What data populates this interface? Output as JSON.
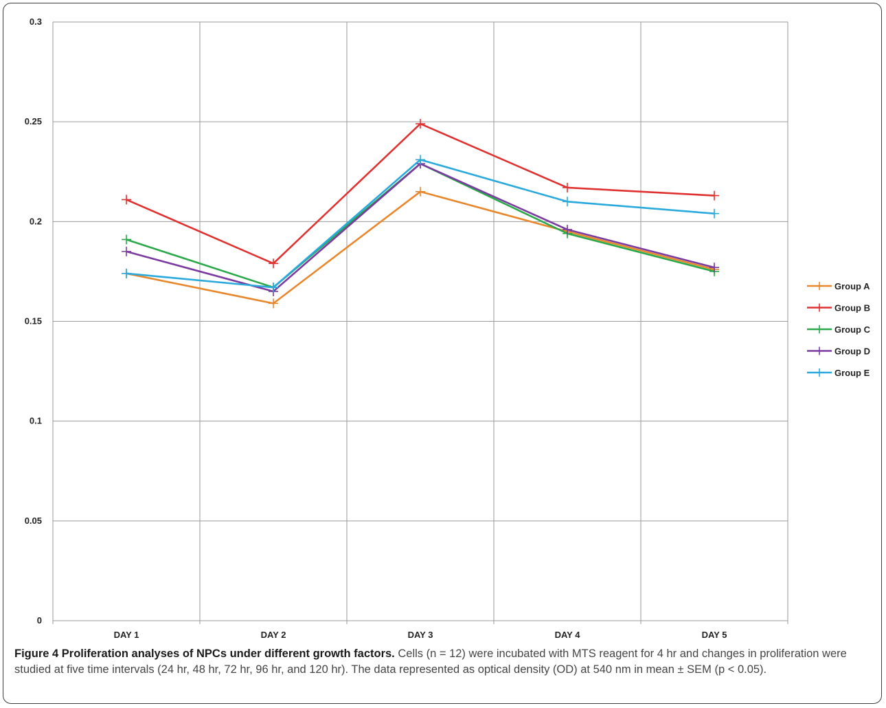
{
  "chart_data": {
    "type": "line",
    "categories": [
      "DAY 1",
      "DAY 2",
      "DAY 3",
      "DAY 4",
      "DAY 5"
    ],
    "ylim": [
      0,
      0.3
    ],
    "yticks": [
      "0",
      "0.05",
      "0.1",
      "0.15",
      "0.2",
      "0.25",
      "0.3"
    ],
    "grid": true,
    "legend_position": "right",
    "series": [
      {
        "name": "Group A",
        "color": "#e8872c",
        "values": [
          0.174,
          0.159,
          0.215,
          0.195,
          0.176
        ]
      },
      {
        "name": "Group B",
        "color": "#e03131",
        "values": [
          0.211,
          0.179,
          0.249,
          0.217,
          0.213
        ]
      },
      {
        "name": "Group C",
        "color": "#2aa84a",
        "values": [
          0.191,
          0.167,
          0.229,
          0.194,
          0.175
        ]
      },
      {
        "name": "Group D",
        "color": "#7b3aa0",
        "values": [
          0.185,
          0.165,
          0.229,
          0.196,
          0.177
        ]
      },
      {
        "name": "Group E",
        "color": "#29a9dc",
        "values": [
          0.174,
          0.167,
          0.231,
          0.21,
          0.204
        ]
      }
    ]
  },
  "caption": {
    "title": "Figure 4 Proliferation analyses of NPCs under different growth factors.",
    "text": " Cells (n = 12) were incubated with MTS reagent for 4 hr and changes in proliferation were studied at five time intervals (24 hr, 48 hr, 72 hr, 96 hr, and 120 hr). The data represented as optical density (OD) at 540 nm in mean ± SEM (p < 0.05)."
  }
}
